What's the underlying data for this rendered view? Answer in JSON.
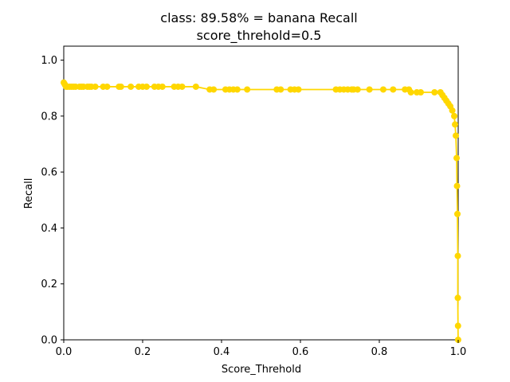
{
  "chart_data": {
    "type": "line",
    "title": "class: 89.58% = banana Recall",
    "subtitle": "score_threhold=0.5",
    "xlabel": "Score_Threhold",
    "ylabel": "Recall",
    "xlim": [
      0.0,
      1.0
    ],
    "ylim": [
      0.0,
      1.05
    ],
    "xticks": [
      "0.0",
      "0.2",
      "0.4",
      "0.6",
      "0.8",
      "1.0"
    ],
    "yticks": [
      "0.0",
      "0.2",
      "0.4",
      "0.6",
      "0.8",
      "1.0"
    ],
    "grid": false,
    "color": "#FFD700",
    "series": [
      {
        "x": [
          0.0,
          0.002,
          0.004,
          0.006,
          0.01,
          0.015,
          0.02,
          0.025,
          0.03,
          0.04,
          0.045,
          0.05,
          0.06,
          0.065,
          0.07,
          0.08,
          0.1,
          0.11,
          0.14,
          0.145,
          0.17,
          0.19,
          0.2,
          0.21,
          0.23,
          0.24,
          0.25,
          0.28,
          0.29,
          0.3,
          0.335,
          0.37,
          0.38,
          0.41,
          0.42,
          0.43,
          0.44,
          0.465,
          0.54,
          0.55,
          0.575,
          0.585,
          0.595,
          0.69,
          0.7,
          0.71,
          0.72,
          0.73,
          0.735,
          0.745,
          0.775,
          0.81,
          0.835,
          0.865,
          0.875,
          0.88,
          0.895,
          0.905,
          0.94,
          0.955,
          0.96,
          0.965,
          0.97,
          0.975,
          0.98,
          0.985,
          0.99,
          0.992,
          0.994,
          0.996,
          0.997,
          0.998,
          0.999,
          0.999,
          0.9995,
          0.9998
        ],
        "y": [
          0.92,
          0.915,
          0.91,
          0.905,
          0.905,
          0.905,
          0.905,
          0.905,
          0.905,
          0.905,
          0.905,
          0.905,
          0.905,
          0.905,
          0.905,
          0.905,
          0.905,
          0.905,
          0.905,
          0.905,
          0.905,
          0.905,
          0.905,
          0.905,
          0.905,
          0.905,
          0.905,
          0.905,
          0.905,
          0.905,
          0.905,
          0.895,
          0.895,
          0.895,
          0.895,
          0.895,
          0.895,
          0.895,
          0.895,
          0.895,
          0.895,
          0.895,
          0.895,
          0.895,
          0.895,
          0.895,
          0.895,
          0.895,
          0.895,
          0.895,
          0.895,
          0.895,
          0.895,
          0.895,
          0.895,
          0.885,
          0.885,
          0.885,
          0.885,
          0.885,
          0.875,
          0.865,
          0.855,
          0.845,
          0.835,
          0.82,
          0.8,
          0.77,
          0.73,
          0.65,
          0.55,
          0.45,
          0.3,
          0.15,
          0.05,
          0.0
        ]
      }
    ]
  }
}
